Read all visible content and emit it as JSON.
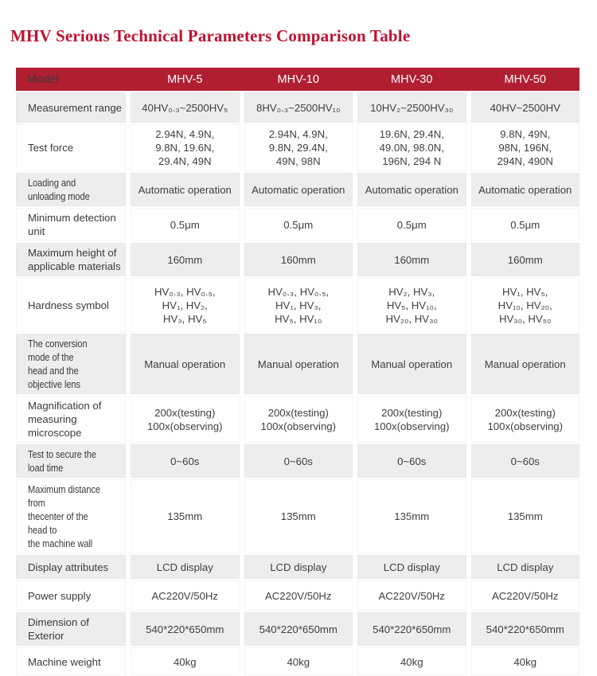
{
  "page": {
    "title": "MHV Serious Technical Parameters Comparison Table"
  },
  "colors": {
    "title_red": "#bf1230",
    "header_bg": "#b11e31",
    "header_text": "#ffffff",
    "row_alt_bg": "#ededed",
    "body_text": "#404040"
  },
  "table": {
    "header": {
      "label": "Model",
      "columns": [
        "MHV-5",
        "MHV-10",
        "MHV-30",
        "MHV-50"
      ]
    },
    "rows": [
      {
        "label": "Measurement range",
        "values": [
          "40HV₀.₃~2500HV₅",
          "8HV₀.₃~2500HV₁₀",
          "10HV₂~2500HV₃₀",
          "40HV~2500HV"
        ]
      },
      {
        "label": "Test force",
        "values": [
          "2.94N、4.9N、\n9.8N、19.6N、\n29.4N、49N",
          "2.94N、4.9N、\n9.8N、29.4N、\n49N、98N",
          "19.6N、29.4N、\n49.0N、98.0N、\n196N、294 N",
          "9.8N、49N、\n98N、196N、\n294N、490N"
        ]
      },
      {
        "label": "Loading and unloading mode",
        "values": [
          "Automatic operation",
          "Automatic operation",
          "Automatic operation",
          "Automatic operation"
        ]
      },
      {
        "label": "Minimum detection unit",
        "values": [
          "0.5μm",
          "0.5μm",
          "0.5μm",
          "0.5μm"
        ]
      },
      {
        "label": "Maximum height of\napplicable materials",
        "values": [
          "160mm",
          "160mm",
          "160mm",
          "160mm"
        ]
      },
      {
        "label": "Hardness symbol",
        "values": [
          "HV₀.₃、HV₀.₅、\nHV₁、HV₂、\nHV₃、HV₅",
          "HV₀.₃、HV₀.₅、\nHV₁、HV₃、\nHV₅、HV₁₀",
          "HV₂、HV₃、\nHV₅、HV₁₀、\nHV₂₀、HV₃₀",
          "HV₁、HV₅、\nHV₁₀、HV₂₀、\nHV₃₀、HV₅₀"
        ]
      },
      {
        "label": "The conversion mode of the\nhead and the objective lens",
        "values": [
          "Manual operation",
          "Manual operation",
          "Manual operation",
          "Manual operation"
        ]
      },
      {
        "label": "Magnification of\nmeasuring microscope",
        "values": [
          "200x(testing)\n100x(observing)",
          "200x(testing)\n100x(observing)",
          "200x(testing)\n100x(observing)",
          "200x(testing)\n100x(observing)"
        ]
      },
      {
        "label": "Test to secure the load time",
        "values": [
          "0~60s",
          "0~60s",
          "0~60s",
          "0~60s"
        ]
      },
      {
        "label": "Maximum distance from\nthecenter of the head to\nthe machine wall",
        "values": [
          "135mm",
          "135mm",
          "135mm",
          "135mm"
        ]
      },
      {
        "label": "Display attributes",
        "values": [
          "LCD display",
          "LCD display",
          "LCD display",
          "LCD display"
        ]
      },
      {
        "label": "Power supply",
        "values": [
          "AC220V/50Hz",
          "AC220V/50Hz",
          "AC220V/50Hz",
          "AC220V/50Hz"
        ]
      },
      {
        "label": "Dimension of Exterior",
        "values": [
          "540*220*650mm",
          "540*220*650mm",
          "540*220*650mm",
          "540*220*650mm"
        ]
      },
      {
        "label": "Machine weight",
        "values": [
          "40kg",
          "40kg",
          "40kg",
          "40kg"
        ]
      }
    ]
  }
}
